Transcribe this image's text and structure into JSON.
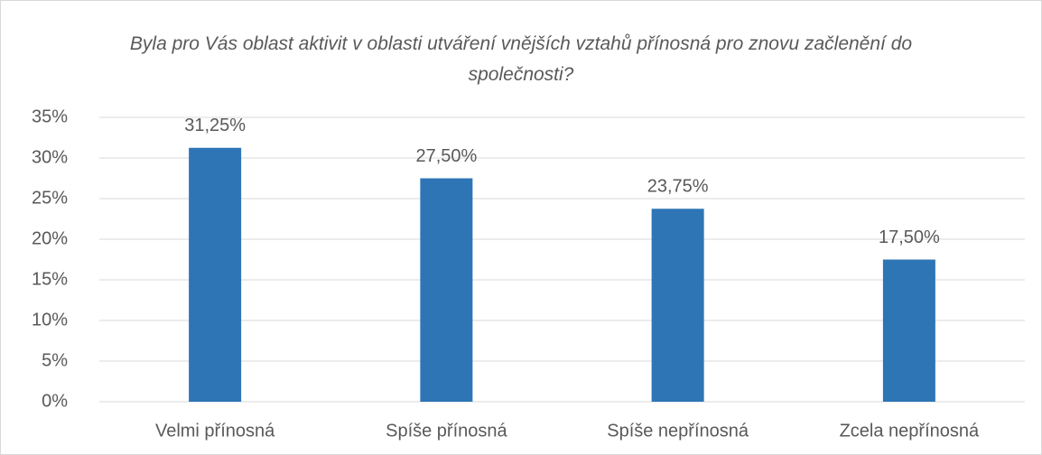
{
  "chart_data": {
    "type": "bar",
    "title": "Byla pro Vás oblast aktivit v oblasti utváření vnějších vztahů přínosná pro znovu začlenění do společnosti?",
    "categories": [
      "Velmi přínosná",
      "Spíše přínosná",
      "Spíše nepřínosná",
      "Zcela nepřínosná"
    ],
    "values": [
      31.25,
      27.5,
      23.75,
      17.5
    ],
    "value_labels": [
      "31,25%",
      "27,50%",
      "23,75%",
      "17,50%"
    ],
    "color": "#2e75b6",
    "ylim": [
      0,
      35
    ],
    "yticks": [
      {
        "value": 0,
        "label": "0%"
      },
      {
        "value": 5,
        "label": "5%"
      },
      {
        "value": 10,
        "label": "10%"
      },
      {
        "value": 15,
        "label": "15%"
      },
      {
        "value": 20,
        "label": "20%"
      },
      {
        "value": 25,
        "label": "25%"
      },
      {
        "value": 30,
        "label": "30%"
      },
      {
        "value": 35,
        "label": "35%"
      }
    ],
    "grid": true
  }
}
